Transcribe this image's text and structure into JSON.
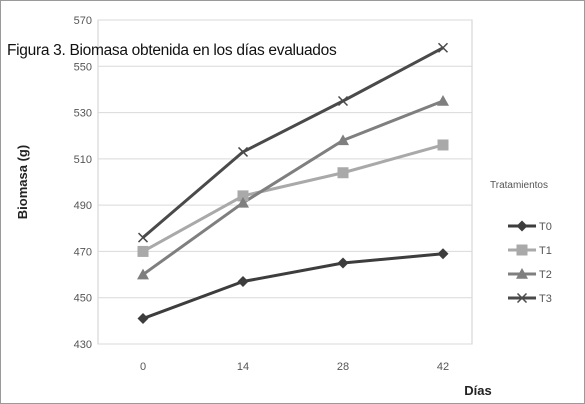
{
  "caption": "Figura 3. Biomasa obtenida en los días evaluados",
  "chart_data": {
    "type": "line",
    "title": "",
    "xlabel": "Días",
    "ylabel": "Biomasa (g)",
    "x": [
      0,
      14,
      28,
      42
    ],
    "ylim": [
      430,
      570
    ],
    "yticks": [
      430,
      450,
      470,
      490,
      510,
      530,
      550,
      570
    ],
    "grid": "horizontal",
    "legend": {
      "title": "Tratamientos",
      "placement": "right"
    },
    "series": [
      {
        "name": "T0",
        "marker": "diamond",
        "color": "#3d3d3d",
        "values": [
          441,
          457,
          465,
          469
        ]
      },
      {
        "name": "T1",
        "marker": "square",
        "color": "#a9a9a9",
        "values": [
          470,
          494,
          504,
          516
        ]
      },
      {
        "name": "T2",
        "marker": "triangle",
        "color": "#7f7f7f",
        "values": [
          460,
          491,
          518,
          535
        ]
      },
      {
        "name": "T3",
        "marker": "x",
        "color": "#4a4a4a",
        "values": [
          476,
          513,
          535,
          558
        ]
      }
    ]
  }
}
